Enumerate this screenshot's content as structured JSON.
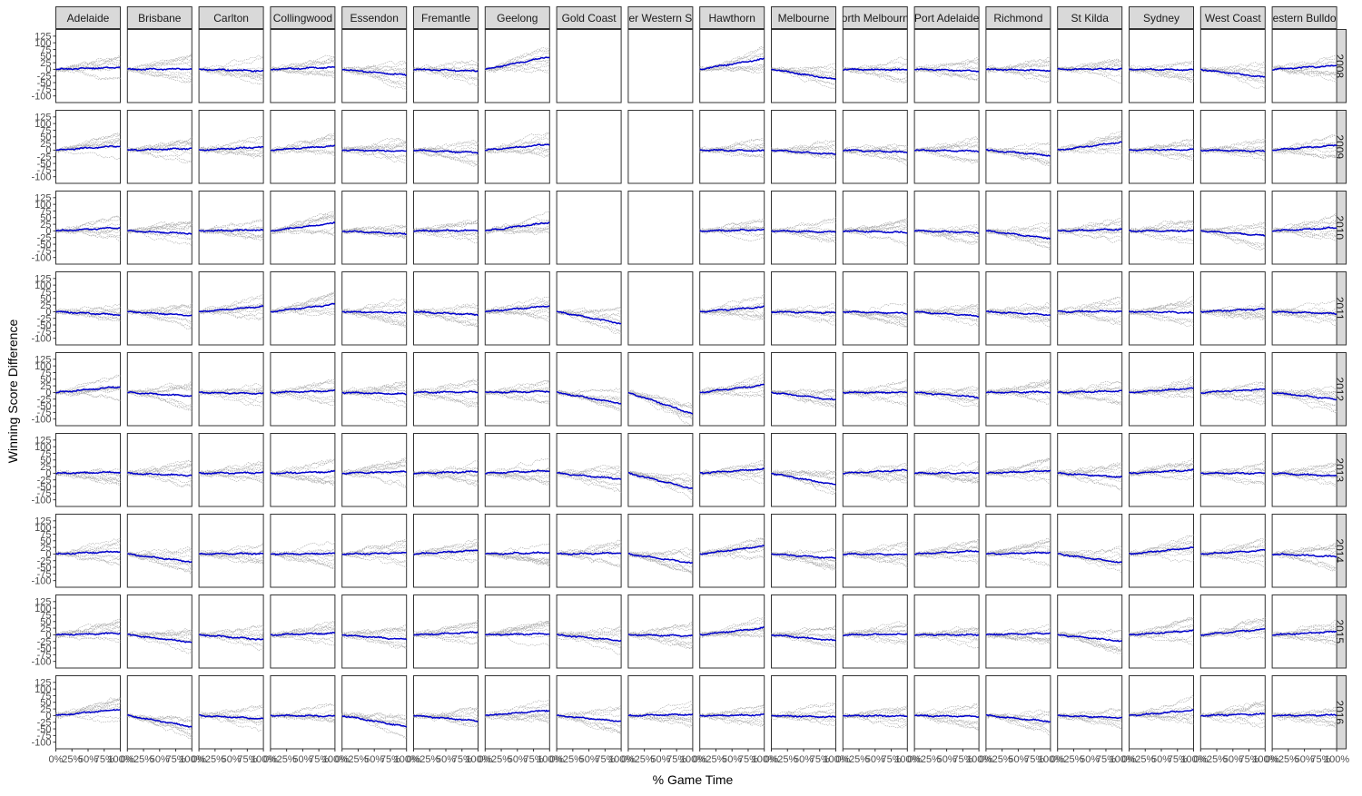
{
  "chart_data": {
    "type": "line",
    "facet_layout": "teams-by-years",
    "xlabel": "% Game Time",
    "ylabel": "Winning Score Difference",
    "xlim": [
      0,
      100
    ],
    "ylim": [
      -125,
      150
    ],
    "x_tick_values": [
      0,
      25,
      50,
      75,
      100
    ],
    "x_tick_labels": [
      "0%",
      "25%",
      "50%",
      "75%",
      "100%"
    ],
    "y_tick_values": [
      125,
      100,
      75,
      50,
      25,
      0,
      -25,
      -50,
      -75,
      -100
    ],
    "y_tick_labels": [
      "125",
      "100",
      "75",
      "50",
      "25",
      "0",
      "-25",
      "-50",
      "-75",
      "-100"
    ],
    "teams": [
      {
        "label": "Adelaide"
      },
      {
        "label": "Brisbane"
      },
      {
        "label": "Carlton"
      },
      {
        "label": "Collingwood"
      },
      {
        "label": "Essendon"
      },
      {
        "label": "Fremantle"
      },
      {
        "label": "Geelong"
      },
      {
        "label": "Gold Coast"
      },
      {
        "label": "er Western S"
      },
      {
        "label": "Hawthorn"
      },
      {
        "label": "Melbourne"
      },
      {
        "label": "orth Melbourn"
      },
      {
        "label": "Port Adelaide"
      },
      {
        "label": "Richmond"
      },
      {
        "label": "St Kilda"
      },
      {
        "label": "Sydney"
      },
      {
        "label": "West Coast"
      },
      {
        "label": "estern Bulldo"
      }
    ],
    "years": [
      {
        "label": "2008"
      },
      {
        "label": "2009"
      },
      {
        "label": "2010"
      },
      {
        "label": "2011"
      },
      {
        "label": "2012"
      },
      {
        "label": "2013"
      },
      {
        "label": "2014"
      },
      {
        "label": "2015"
      },
      {
        "label": "2016"
      }
    ],
    "series": [
      {
        "name": "games",
        "color": "#a8a8a8"
      },
      {
        "name": "average",
        "color": "#0000cc"
      }
    ],
    "average_trend_end": [
      [
        8,
        1,
        -6,
        8,
        -22,
        -6,
        48,
        null,
        null,
        40,
        -38,
        -2,
        -6,
        -4,
        2,
        -2,
        -30,
        14
      ],
      [
        16,
        6,
        12,
        16,
        -4,
        -10,
        22,
        null,
        null,
        -2,
        -16,
        -8,
        -4,
        -20,
        30,
        2,
        -4,
        18
      ],
      [
        12,
        -10,
        4,
        30,
        -12,
        2,
        32,
        null,
        null,
        4,
        -4,
        -6,
        -6,
        -28,
        6,
        0,
        -18,
        12
      ],
      [
        -12,
        -14,
        20,
        28,
        -4,
        -12,
        22,
        -45,
        null,
        18,
        -4,
        -6,
        -16,
        -12,
        2,
        -4,
        10,
        -8
      ],
      [
        22,
        -14,
        -4,
        6,
        -6,
        2,
        4,
        -42,
        -80,
        28,
        -28,
        0,
        -18,
        2,
        6,
        16,
        12,
        -26
      ],
      [
        4,
        -8,
        2,
        6,
        6,
        6,
        10,
        -22,
        -58,
        16,
        -44,
        12,
        2,
        10,
        -14,
        12,
        0,
        -10
      ],
      [
        10,
        -30,
        2,
        2,
        4,
        14,
        6,
        4,
        -34,
        30,
        -16,
        -2,
        12,
        6,
        -32,
        24,
        14,
        -10
      ],
      [
        6,
        -28,
        -18,
        6,
        -18,
        10,
        4,
        -22,
        -4,
        26,
        -22,
        2,
        0,
        6,
        -24,
        16,
        22,
        12
      ],
      [
        24,
        -42,
        -12,
        -2,
        -42,
        -20,
        20,
        -22,
        4,
        2,
        -6,
        -2,
        -4,
        -22,
        -8,
        20,
        6,
        2
      ]
    ]
  }
}
